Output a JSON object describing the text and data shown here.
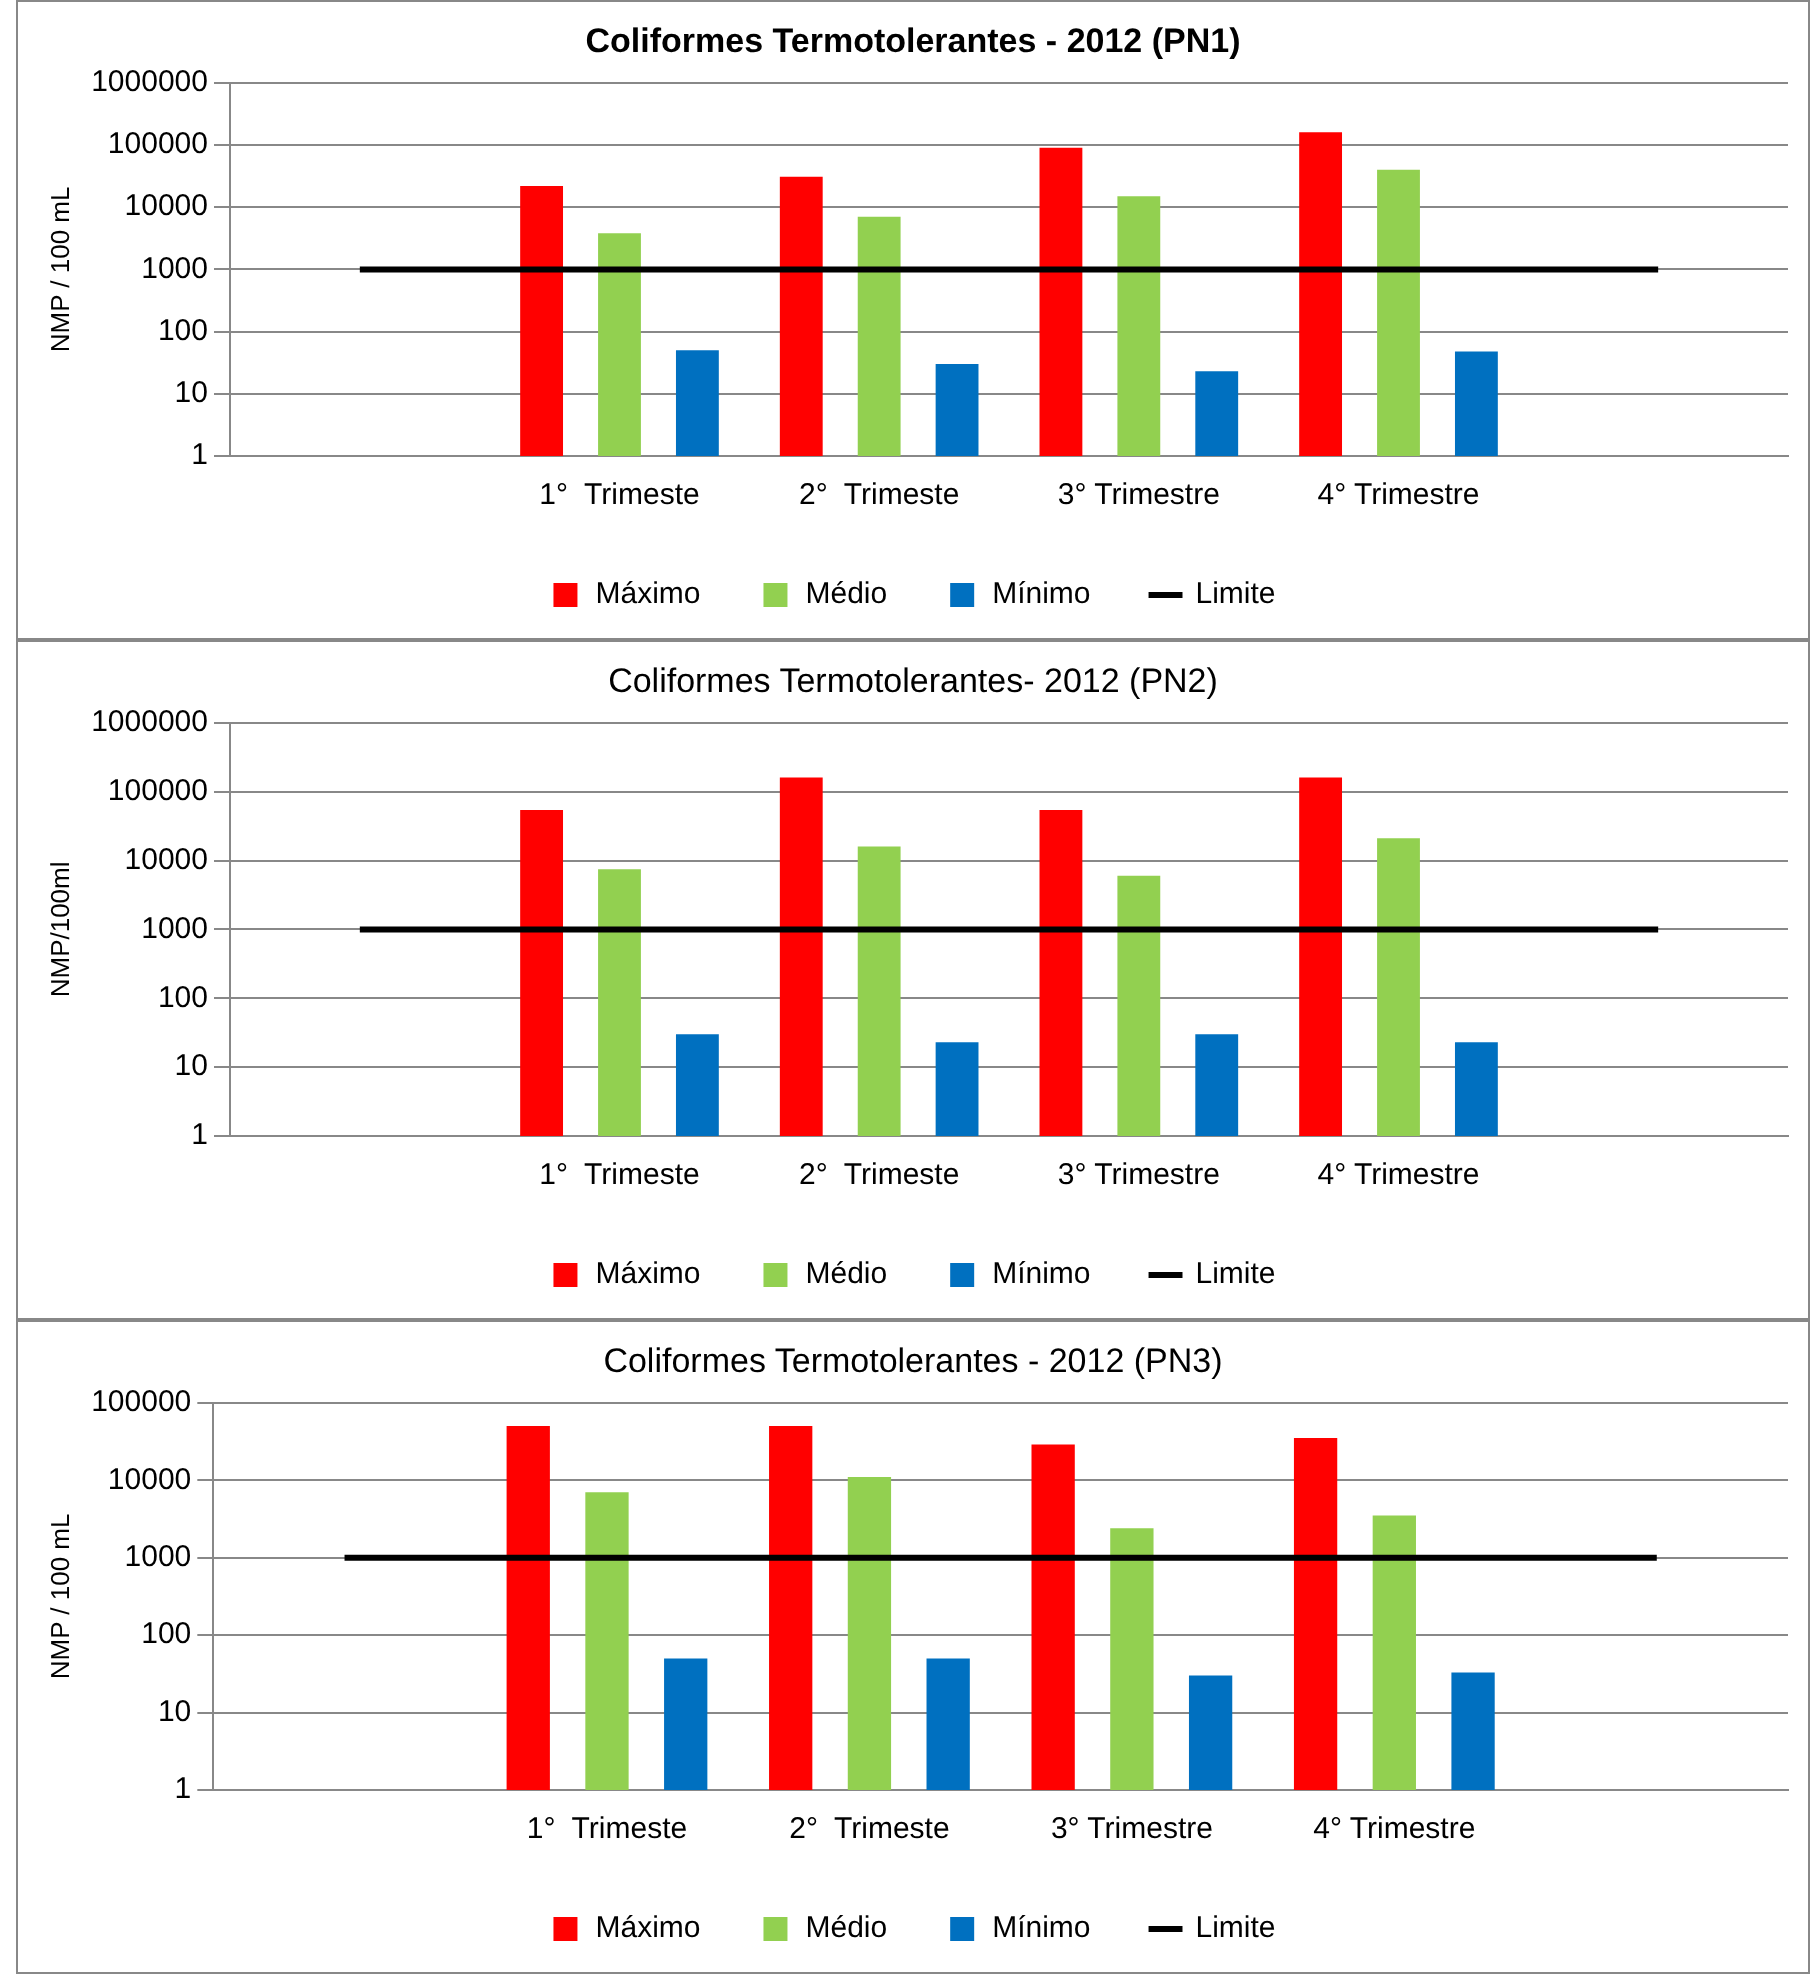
{
  "chart_data": [
    {
      "type": "bar",
      "title": "Coliformes Termotolerantes - 2012 (PN1)",
      "ylabel": "NMP / 100 mL",
      "log": true,
      "grid": "y",
      "legend": "bottom",
      "categories": [
        null,
        "1°  Trimeste",
        "2°  Trimeste",
        "3° Trimestre",
        "4° Trimestre",
        null
      ],
      "ylim": [
        1,
        1000000
      ],
      "yticks": [
        1,
        10,
        100,
        1000,
        10000,
        100000,
        1000000
      ],
      "series": [
        {
          "name": "Máximo",
          "color": "#ff0000",
          "values": [
            null,
            22000,
            31000,
            90000,
            160000,
            null
          ]
        },
        {
          "name": "Médio",
          "color": "#92d050",
          "values": [
            null,
            3800,
            7000,
            15000,
            40000,
            null
          ]
        },
        {
          "name": "Mínimo",
          "color": "#0070c0",
          "values": [
            null,
            50,
            30,
            23,
            48,
            null
          ]
        },
        {
          "name": "Limite",
          "type": "line",
          "color": "#000000",
          "marker": "none",
          "values": [
            1000,
            1000,
            1000,
            1000,
            1000,
            1000
          ]
        }
      ]
    },
    {
      "type": "bar",
      "title": "Coliformes Termotolerantes- 2012 (PN2)",
      "ylabel": "NMP/100ml",
      "log": true,
      "grid": "y",
      "legend": "bottom",
      "categories": [
        null,
        "1°  Trimeste",
        "2°  Trimeste",
        "3° Trimestre",
        "4° Trimestre",
        null
      ],
      "ylim": [
        1,
        1000000
      ],
      "yticks": [
        1,
        10,
        100,
        1000,
        10000,
        100000,
        1000000
      ],
      "series": [
        {
          "name": "Máximo",
          "color": "#ff0000",
          "values": [
            null,
            54000,
            160000,
            54000,
            160000,
            null
          ]
        },
        {
          "name": "Médio",
          "color": "#92d050",
          "values": [
            null,
            7500,
            16000,
            6000,
            21000,
            null
          ]
        },
        {
          "name": "Mínimo",
          "color": "#0070c0",
          "values": [
            null,
            30,
            23,
            30,
            23,
            null
          ]
        },
        {
          "name": "Limite",
          "type": "line",
          "color": "#000000",
          "marker": "none",
          "values": [
            1000,
            1000,
            1000,
            1000,
            1000,
            1000
          ]
        }
      ]
    },
    {
      "type": "bar",
      "title": "Coliformes Termotolerantes - 2012 (PN3)",
      "ylabel": "NMP / 100 mL",
      "log": true,
      "grid": "y",
      "legend": "bottom",
      "categories": [
        null,
        "1°  Trimeste",
        "2°  Trimeste",
        "3° Trimestre",
        "4° Trimestre",
        null
      ],
      "ylim": [
        1,
        100000
      ],
      "yticks": [
        1,
        10,
        100,
        1000,
        10000,
        100000
      ],
      "series": [
        {
          "name": "Máximo",
          "color": "#ff0000",
          "values": [
            null,
            50000,
            50000,
            29000,
            35000,
            null
          ]
        },
        {
          "name": "Médio",
          "color": "#92d050",
          "values": [
            null,
            7000,
            11000,
            2400,
            3500,
            null
          ]
        },
        {
          "name": "Mínimo",
          "color": "#0070c0",
          "values": [
            null,
            50,
            50,
            30,
            33,
            null
          ]
        },
        {
          "name": "Limite",
          "type": "line",
          "color": "#000000",
          "marker": "none",
          "values": [
            1000,
            1000,
            1000,
            1000,
            1000,
            1000
          ]
        }
      ]
    }
  ]
}
